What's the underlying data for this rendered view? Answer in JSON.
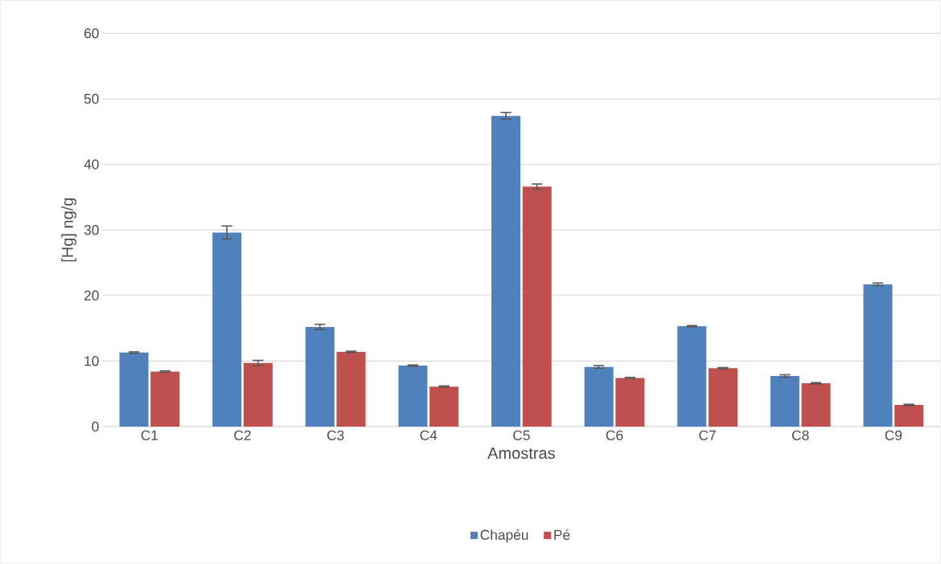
{
  "chart_data": {
    "type": "bar",
    "xlabel": "Amostras",
    "ylabel": "[Hg] ng/g",
    "categories": [
      "C1",
      "C2",
      "C3",
      "C4",
      "C5",
      "C6",
      "C7",
      "C8",
      "C9"
    ],
    "series": [
      {
        "name": "Chapéu",
        "color": "#4f81bd",
        "values": [
          11.3,
          29.6,
          15.2,
          9.3,
          47.4,
          9.1,
          15.3,
          7.7,
          21.7
        ],
        "errors": [
          0.1,
          1.0,
          0.4,
          0.1,
          0.5,
          0.2,
          0.1,
          0.2,
          0.2
        ]
      },
      {
        "name": "Pé",
        "color": "#c0504d",
        "values": [
          8.4,
          9.7,
          11.4,
          6.1,
          36.6,
          7.4,
          8.9,
          6.6,
          3.3
        ],
        "errors": [
          0.1,
          0.4,
          0.1,
          0.1,
          0.4,
          0.1,
          0.1,
          0.1,
          0.1
        ]
      }
    ],
    "ylim": [
      0,
      60
    ],
    "yticks": [
      0,
      10,
      20,
      30,
      40,
      50,
      60
    ],
    "grid": "y",
    "legend": "bottom"
  }
}
